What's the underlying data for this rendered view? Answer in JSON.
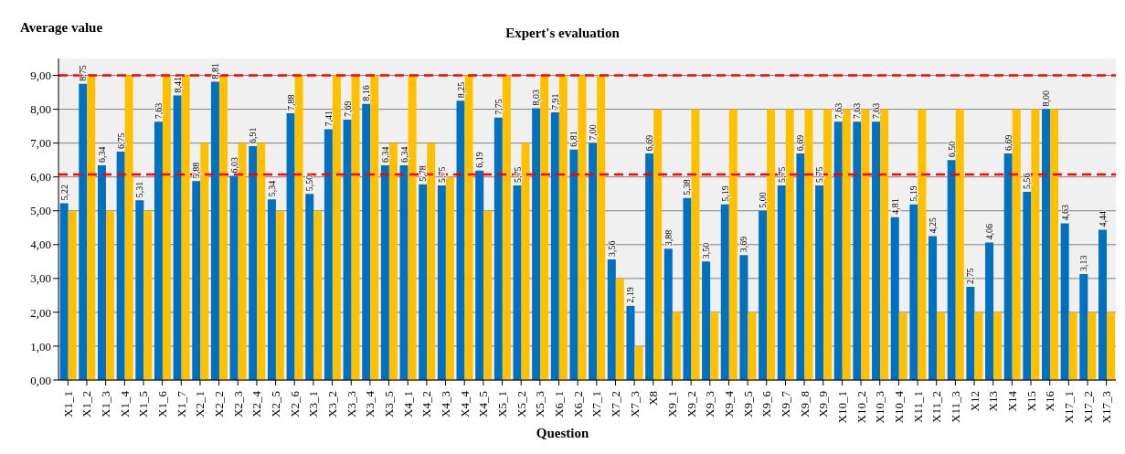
{
  "chart_data": {
    "type": "bar",
    "title": "Expert's evaluation",
    "xlabel": "Question",
    "ylabel": "Average value",
    "categories": [
      "X1_1",
      "X1_2",
      "X1_3",
      "X1_4",
      "X1_5",
      "X1_6",
      "X1_7",
      "X2_1",
      "X2_2",
      "X2_3",
      "X2_4",
      "X2_5",
      "X2_6",
      "X3_1",
      "X3_2",
      "X3_3",
      "X3_4",
      "X3_5",
      "X4_1",
      "X4_2",
      "X4_3",
      "X4_4",
      "X4_5",
      "X5_1",
      "X5_2",
      "X5_3",
      "X6_1",
      "X6_2",
      "X7_1",
      "X7_2",
      "X7_3",
      "X8",
      "X9_1",
      "X9_2",
      "X9_3",
      "X9_4",
      "X9_5",
      "X9_6",
      "X9_7",
      "X9_8",
      "X9_9",
      "X10_1",
      "X10_2",
      "X10_3",
      "X10_4",
      "X11_1",
      "X11_2",
      "X11_3",
      "X12",
      "X13",
      "X14",
      "X15",
      "X16",
      "X17_1",
      "X17_2",
      "X17_3"
    ],
    "series": [
      {
        "color": "#0070c0",
        "values": [
          5.22,
          8.75,
          6.34,
          6.75,
          5.31,
          7.63,
          8.41,
          5.88,
          8.81,
          6.03,
          6.91,
          5.34,
          7.88,
          5.5,
          7.41,
          7.69,
          8.16,
          6.34,
          6.34,
          5.78,
          5.75,
          8.25,
          6.19,
          7.75,
          5.75,
          8.03,
          7.91,
          6.81,
          7.0,
          3.56,
          2.19,
          6.69,
          3.88,
          5.38,
          3.5,
          5.19,
          3.69,
          5.0,
          5.75,
          6.69,
          5.75,
          7.63,
          7.63,
          7.63,
          4.81,
          5.19,
          4.25,
          6.5,
          2.75,
          4.06,
          6.69,
          5.56,
          8.0,
          4.63,
          3.13,
          4.44
        ],
        "value_labels": [
          "5,22",
          "8,75",
          "6,34",
          "6,75",
          "5,31",
          "7,63",
          "8,41",
          "5,88",
          "8,81",
          "6,03",
          "6,91",
          "5,34",
          "7,88",
          "5,50",
          "7,41",
          "7,69",
          "8,16",
          "6,34",
          "6,34",
          "5,78",
          "5,75",
          "8,25",
          "6,19",
          "7,75",
          "5,75",
          "8,03",
          "7,91",
          "6,81",
          "7,00",
          "3,56",
          "2,19",
          "6,69",
          "3,88",
          "5,38",
          "3,50",
          "5,19",
          "3,69",
          "5,00",
          "5,75",
          "6,69",
          "5,75",
          "7,63",
          "7,63",
          "7,63",
          "4,81",
          "5,19",
          "4,25",
          "6,50",
          "2,75",
          "4,06",
          "6,69",
          "5,56",
          "8,00",
          "4,63",
          "3,13",
          "4,44"
        ]
      },
      {
        "color": "#ffc000",
        "values": [
          5,
          9,
          5,
          9,
          5,
          9,
          9,
          7,
          9,
          7,
          7,
          5,
          9,
          5,
          9,
          9,
          9,
          7,
          9,
          7,
          6,
          9,
          5,
          9,
          7,
          9,
          9,
          9,
          9,
          3,
          1,
          8,
          2,
          8,
          2,
          8,
          2,
          8,
          8,
          8,
          8,
          8,
          8,
          8,
          2,
          8,
          2,
          8,
          2,
          2,
          8,
          8,
          8,
          2,
          2,
          2
        ]
      }
    ],
    "ylim": [
      0,
      9.5
    ],
    "yticks": [
      {
        "value": 0,
        "label": "0,00"
      },
      {
        "value": 1,
        "label": "1,00"
      },
      {
        "value": 2,
        "label": "2,00"
      },
      {
        "value": 3,
        "label": "3,00"
      },
      {
        "value": 4,
        "label": "4,00"
      },
      {
        "value": 5,
        "label": "5,00"
      },
      {
        "value": 6,
        "label": "6,00"
      },
      {
        "value": 7,
        "label": "7,00"
      },
      {
        "value": 8,
        "label": "8,00"
      },
      {
        "value": 9,
        "label": "9,00"
      }
    ],
    "grid": "y",
    "ref_lines": [
      {
        "axis": "y",
        "value": 9,
        "color": "#ff0000",
        "line_style": "dashed"
      },
      {
        "axis": "y",
        "value": 6.07,
        "color": "#ff0000",
        "line_style": "dashed"
      }
    ]
  }
}
